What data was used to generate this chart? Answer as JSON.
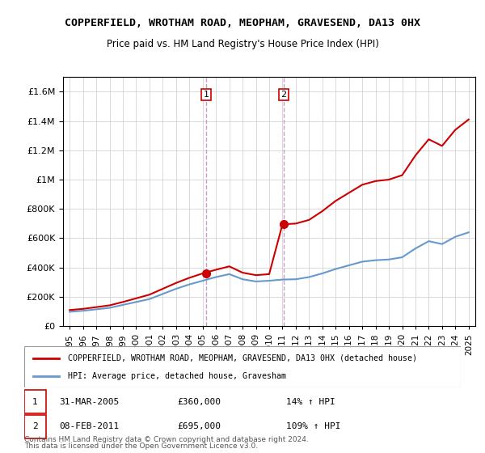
{
  "title": "COPPERFIELD, WROTHAM ROAD, MEOPHAM, GRAVESEND, DA13 0HX",
  "subtitle": "Price paid vs. HM Land Registry's House Price Index (HPI)",
  "red_label": "COPPERFIELD, WROTHAM ROAD, MEOPHAM, GRAVESEND, DA13 0HX (detached house)",
  "blue_label": "HPI: Average price, detached house, Gravesham",
  "annotation1_date": "31-MAR-2005",
  "annotation1_price": "£360,000",
  "annotation1_hpi": "14% ↑ HPI",
  "annotation2_date": "08-FEB-2011",
  "annotation2_price": "£695,000",
  "annotation2_hpi": "109% ↑ HPI",
  "footnote1": "Contains HM Land Registry data © Crown copyright and database right 2024.",
  "footnote2": "This data is licensed under the Open Government Licence v3.0.",
  "red_color": "#cc0000",
  "blue_color": "#6699cc",
  "bg_color": "#ffffff",
  "plot_bg_color": "#ffffff",
  "grid_color": "#cccccc",
  "vline_color": "#cc99cc",
  "ylim": [
    0,
    1700000
  ],
  "yticks": [
    0,
    200000,
    400000,
    600000,
    800000,
    1000000,
    1200000,
    1400000,
    1600000
  ],
  "xlim_start": 1994.5,
  "xlim_end": 2025.5,
  "marker1_year": 2005.25,
  "marker1_red_y": 360000,
  "marker2_year": 2011.1,
  "marker2_red_y": 695000
}
